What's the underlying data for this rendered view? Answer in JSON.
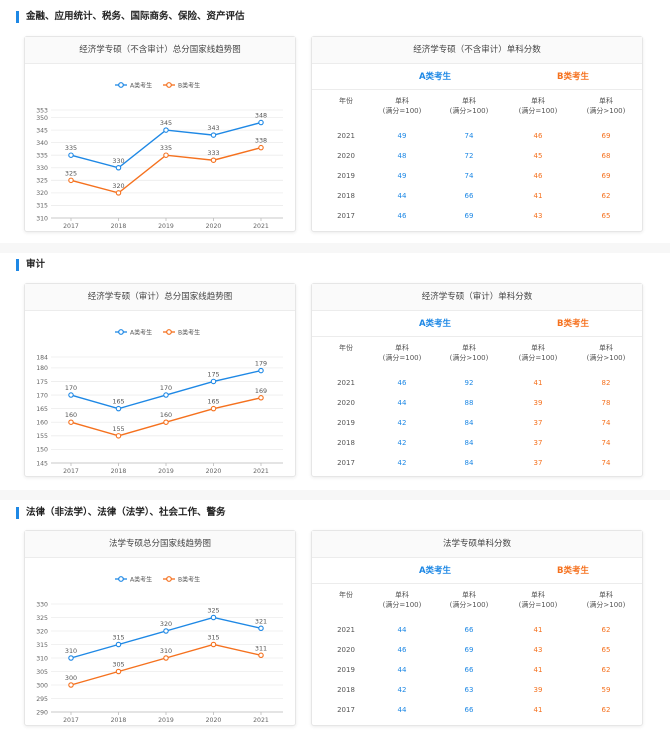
{
  "colors": {
    "a": "#1e88e5",
    "b": "#f5711e",
    "accent": "#1e88e5"
  },
  "legend": {
    "a": "A类考生",
    "b": "B类考生"
  },
  "sections": [
    {
      "title": "金融、应用统计、税务、国际商务、保险、资产评估",
      "chart_title": "经济学专硕（不含审计）总分国家线趋势图",
      "table_title": "经济学专硕（不含审计）单科分数",
      "group_a": "A类考生",
      "group_b": "B类考生",
      "headers": [
        "年份",
        "单科\n(满分=100)",
        "单科\n(满分>100)",
        "单科\n(满分=100)",
        "单科\n(满分>100)"
      ],
      "rows": [
        [
          "2021",
          "49",
          "74",
          "46",
          "69"
        ],
        [
          "2020",
          "48",
          "72",
          "45",
          "68"
        ],
        [
          "2019",
          "49",
          "74",
          "46",
          "69"
        ],
        [
          "2018",
          "44",
          "66",
          "41",
          "62"
        ],
        [
          "2017",
          "46",
          "69",
          "43",
          "65"
        ]
      ]
    },
    {
      "title": "审计",
      "chart_title": "经济学专硕（审计）总分国家线趋势图",
      "table_title": "经济学专硕（审计）单科分数",
      "group_a": "A类考生",
      "group_b": "B类考生",
      "headers": [
        "年份",
        "单科\n(满分=100)",
        "单科\n(满分>100)",
        "单科\n(满分=100)",
        "单科\n(满分>100)"
      ],
      "rows": [
        [
          "2021",
          "46",
          "92",
          "41",
          "82"
        ],
        [
          "2020",
          "44",
          "88",
          "39",
          "78"
        ],
        [
          "2019",
          "42",
          "84",
          "37",
          "74"
        ],
        [
          "2018",
          "42",
          "84",
          "37",
          "74"
        ],
        [
          "2017",
          "42",
          "84",
          "37",
          "74"
        ]
      ]
    },
    {
      "title": "法律（非法学）、法律（法学）、社会工作、警务",
      "chart_title": "法学专硕总分国家线趋势图",
      "table_title": "法学专硕单科分数",
      "group_a": "A类考生",
      "group_b": "B类考生",
      "headers": [
        "年份",
        "单科\n(满分=100)",
        "单科\n(满分>100)",
        "单科\n(满分=100)",
        "单科\n(满分>100)"
      ],
      "rows": [
        [
          "2021",
          "44",
          "66",
          "41",
          "62"
        ],
        [
          "2020",
          "46",
          "69",
          "43",
          "65"
        ],
        [
          "2019",
          "44",
          "66",
          "41",
          "62"
        ],
        [
          "2018",
          "42",
          "63",
          "39",
          "59"
        ],
        [
          "2017",
          "44",
          "66",
          "41",
          "62"
        ]
      ]
    }
  ],
  "chart_data": [
    {
      "type": "line",
      "title": "经济学专硕（不含审计）总分国家线趋势图",
      "categories": [
        "2017",
        "2018",
        "2019",
        "2020",
        "2021"
      ],
      "series": [
        {
          "name": "A类考生",
          "values": [
            335,
            330,
            345,
            343,
            348
          ]
        },
        {
          "name": "B类考生",
          "values": [
            325,
            320,
            335,
            333,
            338
          ]
        }
      ],
      "yticks": [
        310,
        315,
        320,
        325,
        330,
        335,
        340,
        345,
        350,
        353
      ],
      "ylim": [
        310,
        353
      ],
      "legend": "top-center"
    },
    {
      "type": "line",
      "title": "经济学专硕（审计）总分国家线趋势图",
      "categories": [
        "2017",
        "2018",
        "2019",
        "2020",
        "2021"
      ],
      "series": [
        {
          "name": "A类考生",
          "values": [
            170,
            165,
            170,
            175,
            179
          ]
        },
        {
          "name": "B类考生",
          "values": [
            160,
            155,
            160,
            165,
            169
          ]
        }
      ],
      "yticks": [
        145,
        150,
        155,
        160,
        165,
        170,
        175,
        180,
        184
      ],
      "ylim": [
        145,
        184
      ],
      "legend": "top-center"
    },
    {
      "type": "line",
      "title": "法学专硕总分国家线趋势图",
      "categories": [
        "2017",
        "2018",
        "2019",
        "2020",
        "2021"
      ],
      "series": [
        {
          "name": "A类考生",
          "values": [
            310,
            315,
            320,
            325,
            321
          ]
        },
        {
          "name": "B类考生",
          "values": [
            300,
            305,
            310,
            315,
            311
          ]
        }
      ],
      "yticks": [
        290,
        295,
        300,
        305,
        310,
        315,
        320,
        325,
        330
      ],
      "ylim": [
        290,
        330
      ],
      "legend": "top-center"
    }
  ]
}
